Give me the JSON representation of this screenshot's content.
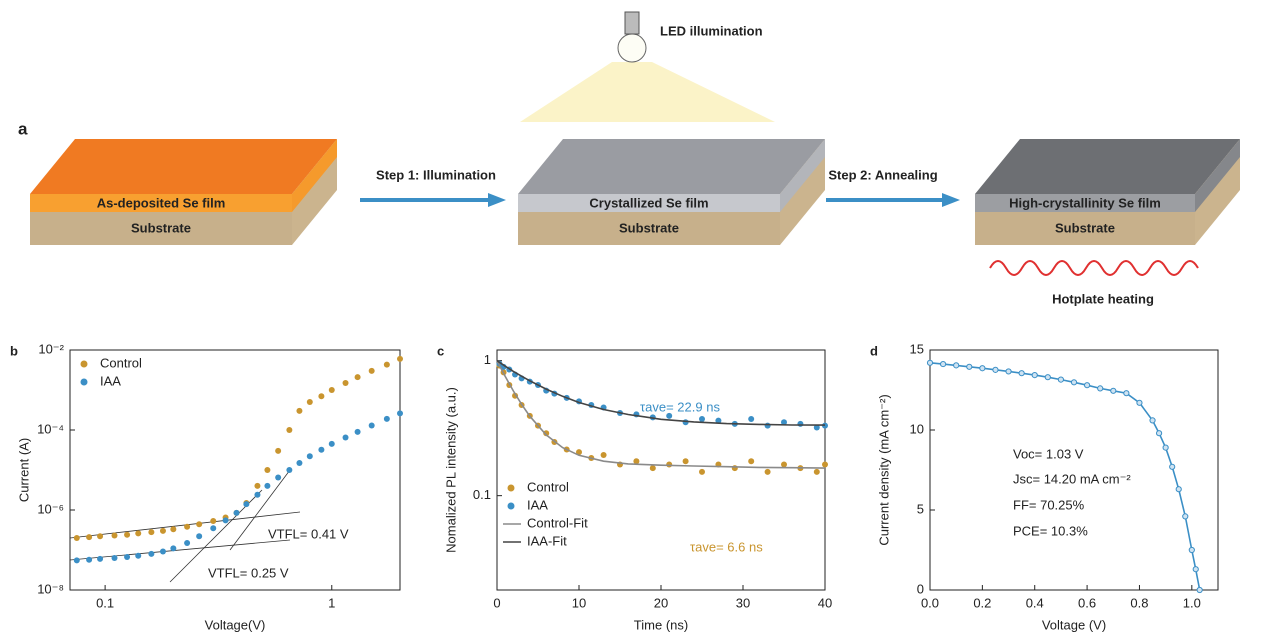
{
  "diagram": {
    "panel": "a",
    "led": "LED illumination",
    "step1": "Step 1: Illumination",
    "step2": "Step 2: Annealing",
    "film1": "As-deposited Se film",
    "film2": "Crystallized Se film",
    "film3": "High-crystallinity Se film",
    "substrate1": "Substrate",
    "substrate2": "Substrate",
    "substrate3": "Substrate",
    "heating": "Hotplate heating"
  },
  "chart_data": [
    {
      "panel": "b",
      "type": "scatter",
      "x_label": "Voltage(V)",
      "y_label": "Current (A)",
      "xscale": "log",
      "yscale": "log",
      "xlim": [
        0.07,
        2
      ],
      "ylim": [
        1e-08,
        0.01
      ],
      "xticks": [
        0.1,
        1
      ],
      "yticks": [
        {
          "value": 1e-08,
          "label": "10⁻⁸"
        },
        {
          "value": 1e-06,
          "label": "10⁻⁶"
        },
        {
          "value": 0.0001,
          "label": "10⁻⁴"
        },
        {
          "value": 0.01,
          "label": "10⁻²"
        }
      ],
      "legend": "upper left",
      "annotations": [
        {
          "text": "VTFL= 0.41 V",
          "color": "#222222"
        },
        {
          "text": "VTFL= 0.25 V",
          "color": "#222222"
        }
      ],
      "x": [
        0.075,
        0.085,
        0.095,
        0.11,
        0.125,
        0.14,
        0.16,
        0.18,
        0.2,
        0.23,
        0.26,
        0.3,
        0.34,
        0.38,
        0.42,
        0.47,
        0.52,
        0.58,
        0.65,
        0.72,
        0.8,
        0.9,
        1.0,
        1.15,
        1.3,
        1.5,
        1.75,
        2.0
      ],
      "series": [
        {
          "name": "Control",
          "color": "#c9952f",
          "style": "marker",
          "values": [
            2e-07,
            2.1e-07,
            2.2e-07,
            2.3e-07,
            2.4e-07,
            2.6e-07,
            2.8e-07,
            3e-07,
            3.3e-07,
            3.8e-07,
            4.4e-07,
            5.3e-07,
            6.5e-07,
            8.5e-07,
            1.5e-06,
            4e-06,
            1e-05,
            3e-05,
            0.0001,
            0.0003,
            0.0005,
            0.0007,
            0.001,
            0.0015,
            0.0021,
            0.003,
            0.0043,
            0.006
          ]
        },
        {
          "name": "IAA",
          "color": "#3b8fc6",
          "style": "marker",
          "values": [
            5.5e-08,
            5.7e-08,
            6e-08,
            6.3e-08,
            6.7e-08,
            7.2e-08,
            8e-08,
            9.2e-08,
            1.1e-07,
            1.5e-07,
            2.2e-07,
            3.5e-07,
            5.5e-07,
            8.5e-07,
            1.4e-06,
            2.4e-06,
            4e-06,
            6.5e-06,
            1e-05,
            1.5e-05,
            2.2e-05,
            3.2e-05,
            4.5e-05,
            6.5e-05,
            9e-05,
            0.00013,
            0.00019,
            0.00026
          ]
        }
      ]
    },
    {
      "panel": "c",
      "type": "scatter",
      "x_label": "Time (ns)",
      "y_label": "Nomalized PL intensity (a.u.)",
      "xscale": "linear",
      "yscale": "log",
      "xlim": [
        0,
        40
      ],
      "ylim": [
        0.02,
        1.2
      ],
      "xticks": [
        0,
        10,
        20,
        30,
        40
      ],
      "yticks": [
        0.1,
        1
      ],
      "legend": "lower left",
      "annotations": [
        {
          "text": "τave= 22.9 ns",
          "color": "#3b8fc6"
        },
        {
          "text": "τave= 6.6 ns",
          "color": "#c9952f"
        }
      ],
      "series": [
        {
          "name": "Control",
          "color": "#c9952f",
          "style": "marker",
          "x": [
            0.3,
            0.8,
            1.5,
            2.2,
            3,
            4,
            5,
            6,
            7,
            8.5,
            10,
            11.5,
            13,
            15,
            17,
            19,
            21,
            23,
            25,
            27,
            29,
            31,
            33,
            35,
            37,
            39,
            40
          ],
          "values": [
            0.92,
            0.82,
            0.66,
            0.55,
            0.47,
            0.39,
            0.33,
            0.29,
            0.25,
            0.22,
            0.21,
            0.19,
            0.2,
            0.17,
            0.18,
            0.16,
            0.17,
            0.18,
            0.15,
            0.17,
            0.16,
            0.18,
            0.15,
            0.17,
            0.16,
            0.15,
            0.17
          ]
        },
        {
          "name": "IAA",
          "color": "#3b8fc6",
          "style": "marker",
          "x": [
            0.3,
            0.8,
            1.5,
            2.2,
            3,
            4,
            5,
            6,
            7,
            8.5,
            10,
            11.5,
            13,
            15,
            17,
            19,
            21,
            23,
            25,
            27,
            29,
            31,
            33,
            35,
            37,
            39,
            40
          ],
          "values": [
            0.95,
            0.9,
            0.86,
            0.79,
            0.74,
            0.7,
            0.66,
            0.6,
            0.57,
            0.53,
            0.5,
            0.47,
            0.45,
            0.41,
            0.4,
            0.38,
            0.39,
            0.35,
            0.37,
            0.36,
            0.34,
            0.37,
            0.33,
            0.35,
            0.34,
            0.32,
            0.33
          ]
        },
        {
          "name": "Control-Fit",
          "color": "#8a8a8a",
          "style": "line",
          "x": [
            0,
            1,
            2,
            3,
            4,
            6,
            8,
            10,
            13,
            16,
            20,
            24,
            28,
            32,
            36,
            40
          ],
          "values": [
            1.0,
            0.765,
            0.596,
            0.475,
            0.388,
            0.282,
            0.227,
            0.199,
            0.18,
            0.172,
            0.168,
            0.166,
            0.164,
            0.162,
            0.161,
            0.16
          ]
        },
        {
          "name": "IAA-Fit",
          "color": "#444444",
          "style": "line",
          "x": [
            0,
            1,
            2,
            3,
            4,
            6,
            8,
            10,
            13,
            16,
            20,
            24,
            28,
            32,
            36,
            40
          ],
          "values": [
            1.0,
            0.91,
            0.833,
            0.767,
            0.709,
            0.616,
            0.545,
            0.49,
            0.435,
            0.399,
            0.368,
            0.352,
            0.342,
            0.337,
            0.334,
            0.333
          ]
        }
      ]
    },
    {
      "panel": "d",
      "type": "line",
      "x_label": "Voltage (V)",
      "y_label": "Current density (mA cm⁻²)",
      "xscale": "linear",
      "yscale": "linear",
      "xlim": [
        0,
        1.1
      ],
      "ylim": [
        0,
        15
      ],
      "xticks": [
        {
          "value": 0,
          "label": "0.0"
        },
        0.2,
        0.4,
        0.6,
        0.8,
        {
          "value": 1,
          "label": "1.0"
        }
      ],
      "yticks": [
        0,
        5,
        10,
        15
      ],
      "annotations": [
        {
          "text": "Voc= 1.03 V",
          "color": "#222222"
        },
        {
          "text": "Jsc= 14.20 mA cm⁻²",
          "color": "#222222"
        },
        {
          "text": "FF= 70.25%",
          "color": "#222222"
        },
        {
          "text": "PCE= 10.3%",
          "color": "#222222"
        }
      ],
      "x": [
        0,
        0.05,
        0.1,
        0.15,
        0.2,
        0.25,
        0.3,
        0.35,
        0.4,
        0.45,
        0.5,
        0.55,
        0.6,
        0.65,
        0.7,
        0.75,
        0.8,
        0.85,
        0.875,
        0.9,
        0.925,
        0.95,
        0.975,
        1.0,
        1.015,
        1.03
      ],
      "series": [
        {
          "color": "#3b8fc6",
          "style": "line+marker",
          "values": [
            14.2,
            14.12,
            14.04,
            13.95,
            13.86,
            13.76,
            13.66,
            13.55,
            13.43,
            13.3,
            13.15,
            12.98,
            12.8,
            12.6,
            12.45,
            12.3,
            11.7,
            10.6,
            9.8,
            8.9,
            7.7,
            6.3,
            4.6,
            2.5,
            1.3,
            0
          ]
        }
      ]
    }
  ]
}
